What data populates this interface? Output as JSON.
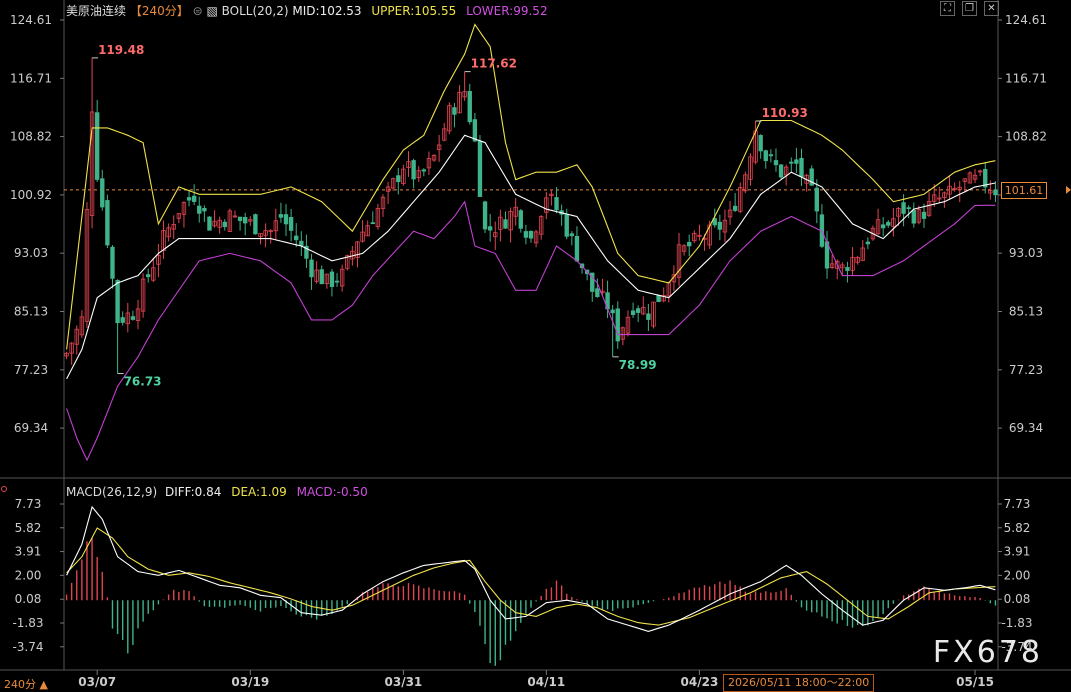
{
  "header": {
    "symbol": "美原油连续",
    "period": "【240分】",
    "boll_label": "BOLL(20,2)",
    "mid": "MID:102.53",
    "upper": "UPPER:105.55",
    "lower": "LOWER:99.52",
    "macd_label": "MACD(26,12,9)",
    "diff": "DIFF:0.84",
    "dea": "DEA:1.09",
    "macd": "MACD:-0.50"
  },
  "footer": {
    "period_button": "240分 ▲",
    "cursor_time": "2026/05/11 18:00～22:00",
    "watermark": "FX678"
  },
  "current_price": "101.61",
  "colors": {
    "up": "#e04550",
    "down": "#3fb38a",
    "mid_line": "#ffffff",
    "upper_line": "#f0e24a",
    "lower_line": "#c040d0",
    "diff_line": "#ffffff",
    "dea_line": "#f0e24a",
    "price_line": "#e88a3c",
    "grid": "#3a3a3a"
  },
  "chart_data": [
    {
      "type": "candlestick",
      "title": "美原油连续 240分 BOLL(20,2)",
      "y_ticks": [
        "124.61",
        "116.71",
        "108.82",
        "100.92",
        "93.03",
        "85.13",
        "77.23",
        "69.34"
      ],
      "y_tick_values": [
        124.61,
        116.71,
        108.82,
        100.92,
        93.03,
        85.13,
        77.23,
        69.34
      ],
      "ylim": [
        64.0,
        126.5
      ],
      "x_ticks": [
        "03/07",
        "03/19",
        "03/31",
        "04/11",
        "04/23",
        "05/15"
      ],
      "x_tick_index": [
        6,
        36,
        66,
        94,
        124,
        178
      ],
      "bar_count": 183,
      "annotations": [
        {
          "text": "119.48",
          "index": 5,
          "value": 119.48,
          "kind": "high"
        },
        {
          "text": "76.73",
          "index": 10,
          "value": 76.73,
          "kind": "low"
        },
        {
          "text": "117.62",
          "index": 78,
          "value": 117.62,
          "kind": "high"
        },
        {
          "text": "78.99",
          "index": 107,
          "value": 78.99,
          "kind": "low"
        },
        {
          "text": "110.93",
          "index": 135,
          "value": 110.93,
          "kind": "high"
        }
      ],
      "current_price": 101.61,
      "close_path": [
        [
          0,
          79.5
        ],
        [
          3,
          84
        ],
        [
          5,
          113
        ],
        [
          6,
          104
        ],
        [
          8,
          95
        ],
        [
          10,
          84
        ],
        [
          13,
          85
        ],
        [
          16,
          90
        ],
        [
          19,
          95
        ],
        [
          22,
          99
        ],
        [
          25,
          101
        ],
        [
          28,
          97
        ],
        [
          32,
          98
        ],
        [
          36,
          97
        ],
        [
          40,
          96
        ],
        [
          42,
          98
        ],
        [
          45,
          95
        ],
        [
          48,
          91
        ],
        [
          51,
          89
        ],
        [
          54,
          90
        ],
        [
          57,
          95
        ],
        [
          60,
          98
        ],
        [
          63,
          101
        ],
        [
          66,
          105
        ],
        [
          69,
          103
        ],
        [
          72,
          106
        ],
        [
          75,
          112
        ],
        [
          78,
          115
        ],
        [
          80,
          108
        ],
        [
          82,
          96
        ],
        [
          85,
          97
        ],
        [
          88,
          99
        ],
        [
          91,
          95
        ],
        [
          94,
          101
        ],
        [
          97,
          98
        ],
        [
          100,
          93
        ],
        [
          103,
          88
        ],
        [
          106,
          86
        ],
        [
          108,
          82
        ],
        [
          111,
          86
        ],
        [
          114,
          85
        ],
        [
          117,
          88
        ],
        [
          120,
          93
        ],
        [
          124,
          95
        ],
        [
          127,
          96
        ],
        [
          130,
          98
        ],
        [
          133,
          104
        ],
        [
          135,
          110
        ],
        [
          137,
          106
        ],
        [
          140,
          104
        ],
        [
          143,
          105
        ],
        [
          146,
          101
        ],
        [
          149,
          92
        ],
        [
          152,
          91
        ],
        [
          155,
          93
        ],
        [
          158,
          96
        ],
        [
          161,
          97
        ],
        [
          164,
          99
        ],
        [
          167,
          98
        ],
        [
          170,
          100
        ],
        [
          173,
          101
        ],
        [
          176,
          102.5
        ],
        [
          179,
          103
        ],
        [
          182,
          101.61
        ]
      ],
      "boll_mid_path": [
        [
          0,
          76
        ],
        [
          3,
          80
        ],
        [
          6,
          87
        ],
        [
          10,
          89
        ],
        [
          14,
          90
        ],
        [
          18,
          93
        ],
        [
          22,
          95
        ],
        [
          28,
          95
        ],
        [
          34,
          95
        ],
        [
          40,
          95
        ],
        [
          46,
          94
        ],
        [
          52,
          92
        ],
        [
          58,
          93
        ],
        [
          63,
          96
        ],
        [
          68,
          100
        ],
        [
          73,
          104
        ],
        [
          78,
          109
        ],
        [
          82,
          108
        ],
        [
          88,
          101
        ],
        [
          94,
          99
        ],
        [
          100,
          98
        ],
        [
          106,
          92
        ],
        [
          112,
          88
        ],
        [
          118,
          87
        ],
        [
          124,
          91
        ],
        [
          130,
          95
        ],
        [
          136,
          101
        ],
        [
          142,
          104
        ],
        [
          148,
          102
        ],
        [
          154,
          97
        ],
        [
          160,
          95
        ],
        [
          166,
          99
        ],
        [
          172,
          100
        ],
        [
          178,
          102
        ],
        [
          182,
          102.53
        ]
      ],
      "boll_upper_path": [
        [
          0,
          80
        ],
        [
          3,
          98
        ],
        [
          5,
          110
        ],
        [
          8,
          110
        ],
        [
          12,
          109
        ],
        [
          15,
          108
        ],
        [
          18,
          97
        ],
        [
          22,
          102
        ],
        [
          26,
          101
        ],
        [
          32,
          101
        ],
        [
          38,
          101
        ],
        [
          44,
          102
        ],
        [
          50,
          100
        ],
        [
          56,
          96
        ],
        [
          62,
          103
        ],
        [
          66,
          107
        ],
        [
          70,
          109
        ],
        [
          74,
          115
        ],
        [
          78,
          120
        ],
        [
          80,
          124
        ],
        [
          83,
          121
        ],
        [
          86,
          108
        ],
        [
          88,
          103
        ],
        [
          92,
          104
        ],
        [
          96,
          104
        ],
        [
          100,
          105
        ],
        [
          103,
          102
        ],
        [
          108,
          93
        ],
        [
          112,
          90
        ],
        [
          118,
          89
        ],
        [
          124,
          94
        ],
        [
          130,
          102
        ],
        [
          136,
          111
        ],
        [
          142,
          111
        ],
        [
          148,
          109
        ],
        [
          152,
          107
        ],
        [
          158,
          103
        ],
        [
          162,
          100
        ],
        [
          168,
          101
        ],
        [
          174,
          104
        ],
        [
          178,
          105
        ],
        [
          182,
          105.55
        ]
      ],
      "boll_lower_path": [
        [
          0,
          72
        ],
        [
          2,
          68
        ],
        [
          4,
          65
        ],
        [
          6,
          68
        ],
        [
          10,
          75
        ],
        [
          14,
          79
        ],
        [
          18,
          84
        ],
        [
          22,
          88
        ],
        [
          26,
          92
        ],
        [
          32,
          93
        ],
        [
          38,
          92
        ],
        [
          44,
          89
        ],
        [
          48,
          84
        ],
        [
          52,
          84
        ],
        [
          56,
          86
        ],
        [
          60,
          90
        ],
        [
          64,
          93
        ],
        [
          68,
          96
        ],
        [
          72,
          95
        ],
        [
          76,
          98
        ],
        [
          78,
          100
        ],
        [
          80,
          94
        ],
        [
          84,
          93
        ],
        [
          88,
          88
        ],
        [
          92,
          88
        ],
        [
          96,
          94
        ],
        [
          100,
          92
        ],
        [
          104,
          89
        ],
        [
          108,
          82
        ],
        [
          114,
          82
        ],
        [
          118,
          82
        ],
        [
          124,
          86
        ],
        [
          130,
          92
        ],
        [
          136,
          96
        ],
        [
          142,
          98
        ],
        [
          148,
          96
        ],
        [
          152,
          90
        ],
        [
          158,
          90
        ],
        [
          164,
          92
        ],
        [
          170,
          95
        ],
        [
          174,
          97
        ],
        [
          178,
          99.5
        ],
        [
          182,
          99.52
        ]
      ]
    },
    {
      "type": "macd",
      "title": "MACD(26,12,9)",
      "y_ticks": [
        "7.73",
        "5.82",
        "3.91",
        "2.00",
        "0.08",
        "-1.83",
        "-3.74"
      ],
      "y_tick_values": [
        7.73,
        5.82,
        3.91,
        2.0,
        0.08,
        -1.83,
        -3.74
      ],
      "ylim": [
        -5.5,
        7.73
      ],
      "diff_path": [
        [
          0,
          2.0
        ],
        [
          3,
          4.5
        ],
        [
          5,
          7.5
        ],
        [
          7,
          6.5
        ],
        [
          10,
          3.5
        ],
        [
          14,
          2.3
        ],
        [
          18,
          2.0
        ],
        [
          22,
          2.4
        ],
        [
          26,
          1.8
        ],
        [
          30,
          1.2
        ],
        [
          34,
          1.0
        ],
        [
          38,
          0.4
        ],
        [
          42,
          0.2
        ],
        [
          46,
          -1.0
        ],
        [
          50,
          -1.2
        ],
        [
          54,
          -0.8
        ],
        [
          58,
          0.5
        ],
        [
          62,
          1.5
        ],
        [
          66,
          2.2
        ],
        [
          70,
          2.8
        ],
        [
          74,
          3.0
        ],
        [
          78,
          3.2
        ],
        [
          80,
          2.5
        ],
        [
          83,
          0.0
        ],
        [
          86,
          -1.5
        ],
        [
          90,
          -1.3
        ],
        [
          94,
          -0.2
        ],
        [
          98,
          0.0
        ],
        [
          102,
          -0.3
        ],
        [
          106,
          -1.5
        ],
        [
          110,
          -2.0
        ],
        [
          114,
          -2.5
        ],
        [
          118,
          -2.0
        ],
        [
          124,
          -0.8
        ],
        [
          130,
          0.5
        ],
        [
          136,
          1.5
        ],
        [
          141,
          2.8
        ],
        [
          144,
          2.0
        ],
        [
          148,
          0.5
        ],
        [
          152,
          -0.8
        ],
        [
          156,
          -2.0
        ],
        [
          160,
          -1.6
        ],
        [
          164,
          0.0
        ],
        [
          168,
          1.0
        ],
        [
          172,
          0.8
        ],
        [
          176,
          1.0
        ],
        [
          179,
          1.2
        ],
        [
          182,
          0.84
        ]
      ],
      "dea_path": [
        [
          0,
          2.2
        ],
        [
          3,
          3.5
        ],
        [
          6,
          5.8
        ],
        [
          9,
          5.0
        ],
        [
          12,
          3.5
        ],
        [
          16,
          2.5
        ],
        [
          20,
          2.0
        ],
        [
          24,
          2.2
        ],
        [
          28,
          1.9
        ],
        [
          32,
          1.4
        ],
        [
          36,
          1.0
        ],
        [
          40,
          0.6
        ],
        [
          44,
          0.1
        ],
        [
          48,
          -0.5
        ],
        [
          52,
          -0.8
        ],
        [
          56,
          -0.4
        ],
        [
          60,
          0.4
        ],
        [
          64,
          1.2
        ],
        [
          68,
          2.0
        ],
        [
          72,
          2.6
        ],
        [
          76,
          3.0
        ],
        [
          79,
          3.2
        ],
        [
          82,
          1.5
        ],
        [
          85,
          0.0
        ],
        [
          88,
          -1.0
        ],
        [
          92,
          -1.3
        ],
        [
          96,
          -0.6
        ],
        [
          100,
          -0.3
        ],
        [
          104,
          -0.6
        ],
        [
          108,
          -1.3
        ],
        [
          112,
          -1.8
        ],
        [
          116,
          -2.0
        ],
        [
          122,
          -1.4
        ],
        [
          128,
          -0.4
        ],
        [
          134,
          0.6
        ],
        [
          140,
          1.8
        ],
        [
          145,
          2.3
        ],
        [
          149,
          1.3
        ],
        [
          153,
          0.0
        ],
        [
          157,
          -1.3
        ],
        [
          161,
          -1.5
        ],
        [
          165,
          -0.5
        ],
        [
          169,
          0.6
        ],
        [
          174,
          0.9
        ],
        [
          178,
          1.0
        ],
        [
          182,
          1.09
        ]
      ],
      "hist_path": [
        [
          0,
          0.5
        ],
        [
          2,
          2.5
        ],
        [
          5,
          5.6
        ],
        [
          7,
          2.5
        ],
        [
          9,
          -2.0
        ],
        [
          12,
          -4.3
        ],
        [
          15,
          -1.5
        ],
        [
          18,
          -0.3
        ],
        [
          21,
          0.8
        ],
        [
          24,
          0.7
        ],
        [
          27,
          -0.5
        ],
        [
          30,
          -0.6
        ],
        [
          34,
          -0.4
        ],
        [
          38,
          -0.8
        ],
        [
          42,
          -0.5
        ],
        [
          46,
          -1.3
        ],
        [
          50,
          -1.4
        ],
        [
          54,
          -0.6
        ],
        [
          58,
          0.6
        ],
        [
          62,
          1.2
        ],
        [
          66,
          1.3
        ],
        [
          70,
          1.0
        ],
        [
          74,
          0.8
        ],
        [
          78,
          0.5
        ],
        [
          80,
          -1.0
        ],
        [
          82,
          -3.8
        ],
        [
          84,
          -5.3
        ],
        [
          86,
          -3.5
        ],
        [
          90,
          -1.0
        ],
        [
          94,
          0.8
        ],
        [
          96,
          1.6
        ],
        [
          98,
          0.5
        ],
        [
          102,
          -0.3
        ],
        [
          106,
          -0.8
        ],
        [
          110,
          -0.7
        ],
        [
          114,
          -0.2
        ],
        [
          118,
          0.2
        ],
        [
          122,
          0.8
        ],
        [
          126,
          1.2
        ],
        [
          130,
          1.4
        ],
        [
          134,
          0.6
        ],
        [
          138,
          0.7
        ],
        [
          141,
          0.9
        ],
        [
          144,
          -0.6
        ],
        [
          148,
          -1.2
        ],
        [
          152,
          -1.8
        ],
        [
          156,
          -2.3
        ],
        [
          160,
          -1.0
        ],
        [
          164,
          0.4
        ],
        [
          168,
          1.0
        ],
        [
          172,
          0.6
        ],
        [
          176,
          0.3
        ],
        [
          179,
          0.2
        ],
        [
          182,
          -0.5
        ]
      ]
    }
  ]
}
